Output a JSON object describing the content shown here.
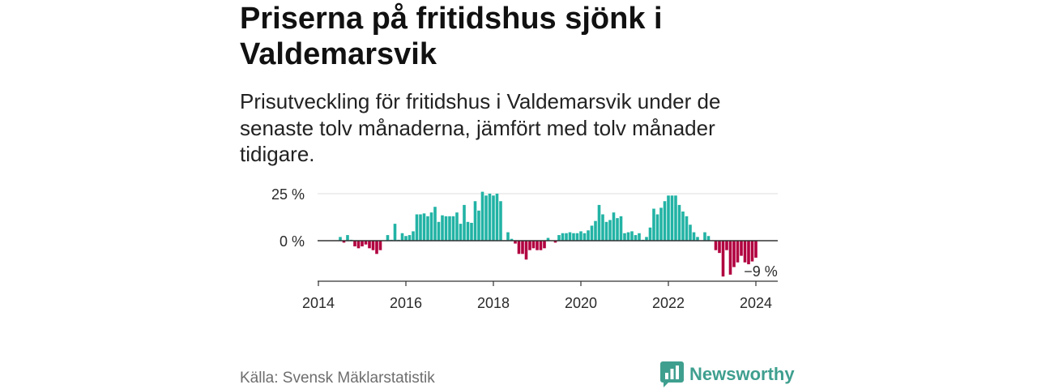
{
  "chart_data": {
    "type": "bar",
    "title": "Priserna på fritidshus sjönk i Valdemarsvik",
    "subtitle": "Prisutveckling för fritidshus i Valdemarsvik under de senaste tolv månaderna, jämfört med tolv månader tidigare.",
    "xlabel": "",
    "ylabel": "",
    "xlim": [
      2014,
      2024.5
    ],
    "ylim": [
      -21.5,
      31
    ],
    "grid": true,
    "xticks": [
      2014,
      2016,
      2018,
      2020,
      2022,
      2024
    ],
    "xtick_labels": [
      "2014",
      "2016",
      "2018",
      "2020",
      "2022",
      "2024"
    ],
    "yticks": [
      0,
      25
    ],
    "ytick_labels": [
      "0 %",
      "25 %"
    ],
    "x": [
      "2014-07",
      "2014-08",
      "2014-09",
      "2014-10",
      "2014-11",
      "2014-12",
      "2015-01",
      "2015-02",
      "2015-03",
      "2015-04",
      "2015-05",
      "2015-06",
      "2015-07",
      "2015-08",
      "2015-09",
      "2015-10",
      "2015-11",
      "2015-12",
      "2016-01",
      "2016-02",
      "2016-03",
      "2016-04",
      "2016-05",
      "2016-06",
      "2016-07",
      "2016-08",
      "2016-09",
      "2016-10",
      "2016-11",
      "2016-12",
      "2017-01",
      "2017-02",
      "2017-03",
      "2017-04",
      "2017-05",
      "2017-06",
      "2017-07",
      "2017-08",
      "2017-09",
      "2017-10",
      "2017-11",
      "2017-12",
      "2018-01",
      "2018-02",
      "2018-03",
      "2018-04",
      "2018-05",
      "2018-06",
      "2018-07",
      "2018-08",
      "2018-09",
      "2018-10",
      "2018-11",
      "2018-12",
      "2019-01",
      "2019-02",
      "2019-03",
      "2019-04",
      "2019-05",
      "2019-06",
      "2019-07",
      "2019-08",
      "2019-09",
      "2019-10",
      "2019-11",
      "2019-12",
      "2020-01",
      "2020-02",
      "2020-03",
      "2020-04",
      "2020-05",
      "2020-06",
      "2020-07",
      "2020-08",
      "2020-09",
      "2020-10",
      "2020-11",
      "2020-12",
      "2021-01",
      "2021-02",
      "2021-03",
      "2021-04",
      "2021-05",
      "2021-06",
      "2021-07",
      "2021-08",
      "2021-09",
      "2021-10",
      "2021-11",
      "2021-12",
      "2022-01",
      "2022-02",
      "2022-03",
      "2022-04",
      "2022-05",
      "2022-06",
      "2022-07",
      "2022-08",
      "2022-09",
      "2022-10",
      "2022-11",
      "2022-12",
      "2023-01",
      "2023-02",
      "2023-03",
      "2023-04",
      "2023-05",
      "2023-06",
      "2023-07",
      "2023-08",
      "2023-09",
      "2023-10",
      "2023-11",
      "2023-12",
      "2024-01"
    ],
    "values": [
      2,
      -1,
      3,
      0.5,
      -3,
      -4,
      -3,
      -2,
      -4,
      -5,
      -7,
      -5,
      0,
      3,
      0.5,
      9,
      0.5,
      4,
      2.5,
      3,
      5,
      14,
      14,
      14.5,
      13,
      15,
      18,
      10,
      13.5,
      13,
      13,
      13,
      15,
      9,
      19,
      10,
      9.5,
      21,
      16,
      26,
      24,
      25,
      24,
      25,
      21,
      0.3,
      4.5,
      1,
      -1.5,
      -7,
      -7,
      -10,
      -5,
      -4,
      -5,
      -5,
      -4,
      1.5,
      0,
      -1,
      3,
      4,
      4,
      4.5,
      4,
      4,
      5,
      4,
      5.5,
      8,
      10.5,
      19,
      14,
      10,
      11,
      15,
      12,
      13,
      4,
      4.5,
      5,
      3,
      4,
      0.5,
      2,
      7,
      17,
      14,
      17.5,
      21,
      24,
      24,
      24,
      19,
      15.5,
      13,
      8.5,
      4.5,
      2,
      0,
      4.5,
      2.5,
      0,
      -5,
      -6.5,
      -19,
      -5,
      -18,
      -14,
      -11.5,
      -8,
      -11.5,
      -12.5,
      -11,
      -9
    ],
    "annotations": [
      {
        "text": "−9 %",
        "x": "2024-01",
        "y": -9
      }
    ],
    "colors": {
      "positive": "#22b3a5",
      "negative": "#b1003f",
      "grid": "#dcdcdc",
      "axis": "#333333"
    }
  },
  "footer": {
    "source": "Källa: Svensk Mäklarstatistik",
    "brand": "Newsworthy",
    "brand_color": "#3f9f8f",
    "logo_icon": "newsworthy-logo-icon"
  }
}
